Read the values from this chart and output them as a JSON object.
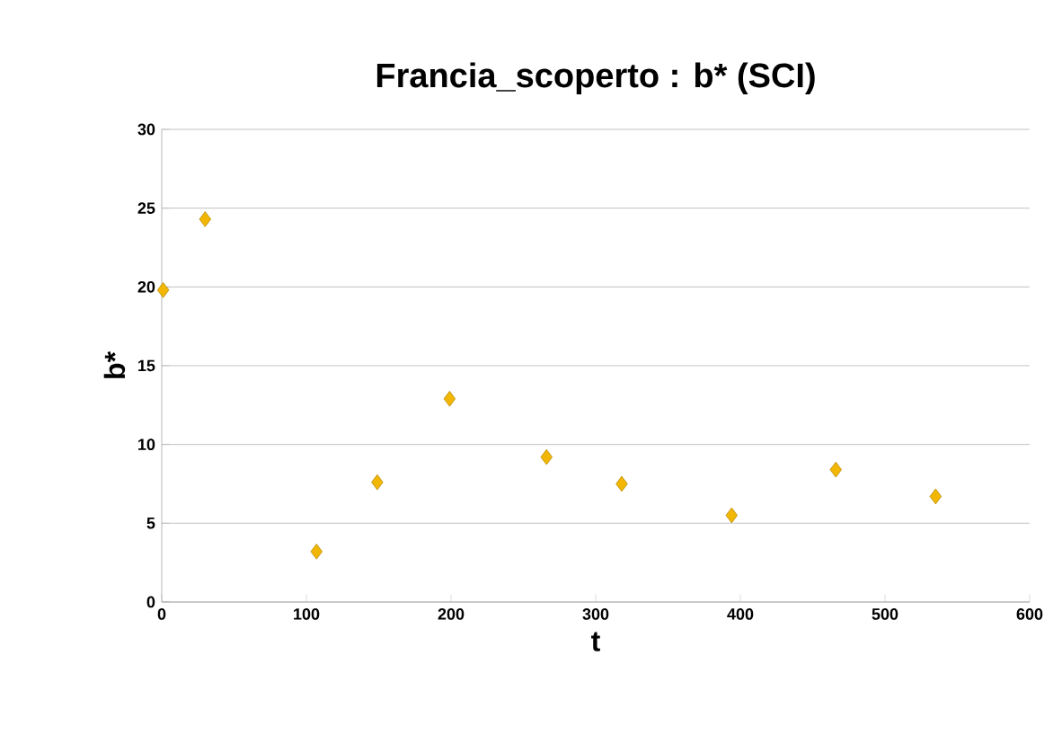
{
  "chart_data": {
    "type": "scatter",
    "title": "Francia_scoperto : b* (SCI)",
    "xlabel": "t",
    "ylabel": "b*",
    "x": [
      1,
      30,
      107,
      149,
      199,
      266,
      318,
      394,
      466,
      535
    ],
    "values": [
      19.8,
      24.3,
      3.2,
      7.6,
      12.9,
      9.2,
      7.5,
      5.5,
      8.4,
      6.7
    ],
    "color": "#f2b705",
    "marker": "diamond",
    "grid": "y",
    "xlim": [
      0,
      600
    ],
    "xticks": [
      0,
      100,
      200,
      300,
      400,
      500,
      600
    ],
    "ylim": [
      0,
      30
    ],
    "yticks": [
      0,
      5,
      10,
      15,
      20,
      25,
      30
    ]
  }
}
